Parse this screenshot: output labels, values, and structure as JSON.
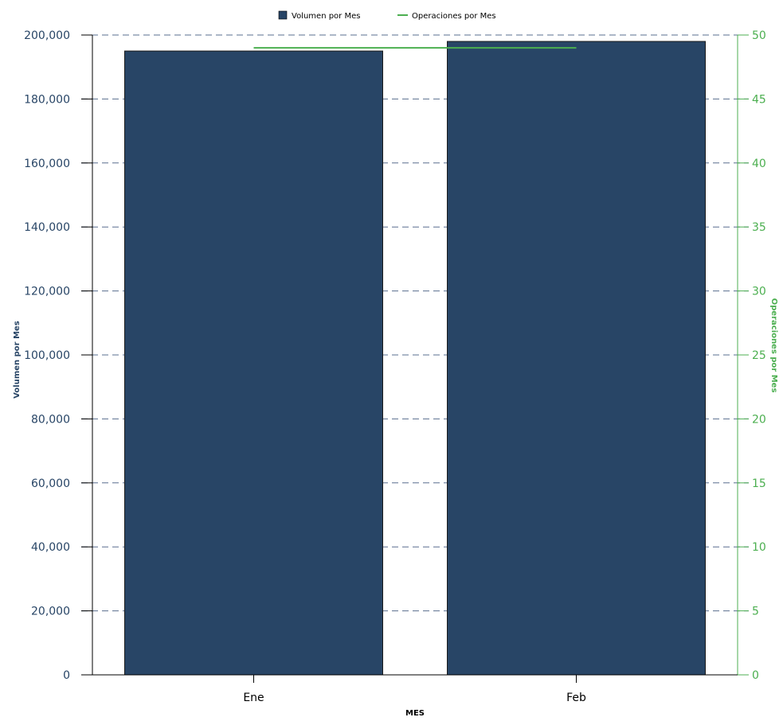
{
  "chart_data": {
    "type": "bar",
    "categories": [
      "Ene",
      "Feb"
    ],
    "series": [
      {
        "name": "Volumen por Mes",
        "type": "bar",
        "axis": "left",
        "color": "#284566",
        "values": [
          195000,
          198000
        ]
      },
      {
        "name": "Operaciones por Mes",
        "type": "line",
        "axis": "right",
        "color": "#4caf50",
        "values": [
          49,
          49
        ]
      }
    ],
    "xlabel": "MES",
    "ylabel": "Volumen por Mes",
    "y2label": "Operaciones por Mes",
    "ylim": [
      0,
      200000
    ],
    "y2lim": [
      0,
      50
    ],
    "yticks": [
      "0",
      "20,000",
      "40,000",
      "60,000",
      "80,000",
      "100,000",
      "120,000",
      "140,000",
      "160,000",
      "180,000",
      "200,000"
    ],
    "y2ticks": [
      "0",
      "5",
      "10",
      "15",
      "20",
      "25",
      "30",
      "35",
      "40",
      "45",
      "50"
    ],
    "grid": true,
    "legend_position": "top-center",
    "colors": {
      "left_axis_text": "#284566",
      "right_axis_text": "#4caf50",
      "gridline": "#5a6f8f"
    }
  }
}
